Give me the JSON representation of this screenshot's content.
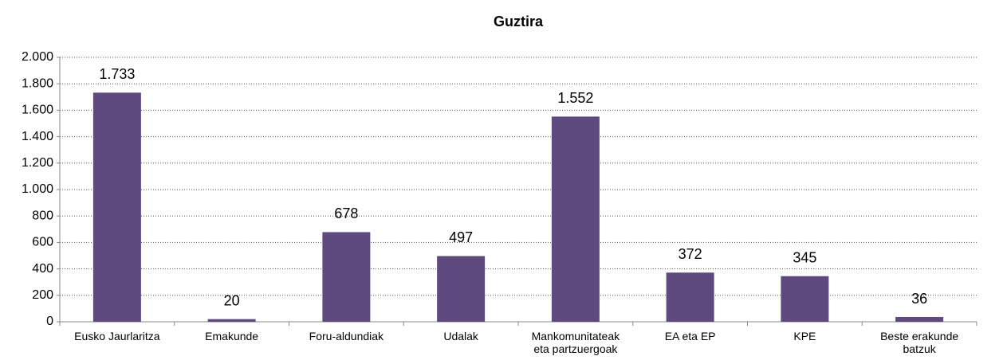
{
  "chart_data": {
    "type": "bar",
    "title": "Guztira",
    "categories": [
      "Eusko Jaurlaritza",
      "Emakunde",
      "Foru-aldundiak",
      "Udalak",
      "Mankomunitateak eta partzuergoak",
      "EA eta EP",
      "KPE",
      "Beste erakunde batzuk"
    ],
    "values": [
      1733,
      20,
      678,
      497,
      1552,
      372,
      345,
      36
    ],
    "value_labels": [
      "1.733",
      "20",
      "678",
      "497",
      "1.552",
      "372",
      "345",
      "36"
    ],
    "color": "#5e4a7e",
    "ylim": [
      0,
      2000
    ],
    "yticks": [
      0,
      200,
      400,
      600,
      800,
      {
        "value": 1000,
        "label": "1.000"
      },
      {
        "value": 1200,
        "label": "1.200"
      },
      {
        "value": 1400,
        "label": "1.400"
      },
      {
        "value": 1600,
        "label": "1.600"
      },
      {
        "value": 1800,
        "label": "1.800"
      },
      {
        "value": 2000,
        "label": "2.000"
      }
    ],
    "grid": true
  }
}
